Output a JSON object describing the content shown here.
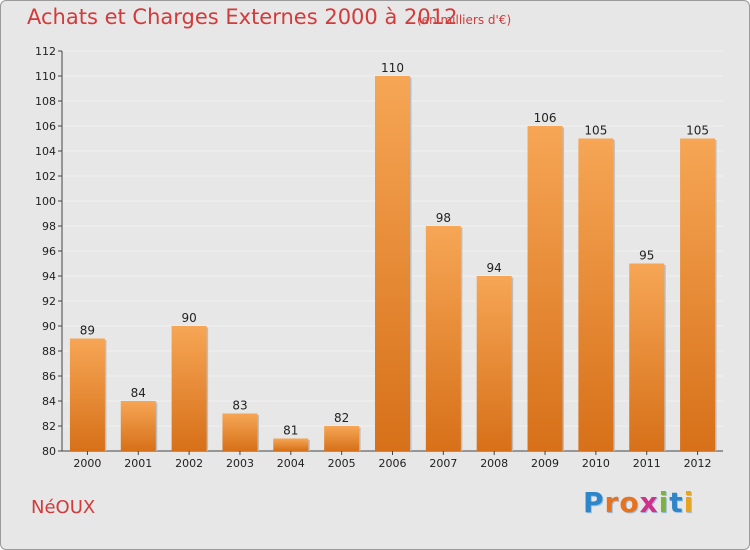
{
  "title": "Achats et Charges Externes 2000 à 2012",
  "subtitle": "(en milliers d'€)",
  "commune": "NéOUX",
  "logo": {
    "text": "Proxiti",
    "letters": [
      "P",
      "r",
      "o",
      "x",
      "i",
      "t",
      "i"
    ],
    "colors": [
      "#2e86c9",
      "#e8731c",
      "#e8731c",
      "#d22f8b",
      "#7fb23a",
      "#2e86c9",
      "#e8a41c"
    ]
  },
  "colors": {
    "bar_top": "#f6a655",
    "bar_bottom": "#d77019",
    "axis": "#444444",
    "grid": "#f2f2f2"
  },
  "chart_data": {
    "type": "bar",
    "categories": [
      "2000",
      "2001",
      "2002",
      "2003",
      "2004",
      "2005",
      "2006",
      "2007",
      "2008",
      "2009",
      "2010",
      "2011",
      "2012"
    ],
    "values": [
      89,
      84,
      90,
      83,
      81,
      82,
      110,
      98,
      94,
      106,
      105,
      95,
      105
    ],
    "ylim": [
      80,
      112
    ],
    "yticks": [
      80,
      82,
      84,
      86,
      88,
      90,
      92,
      94,
      96,
      98,
      100,
      102,
      104,
      106,
      108,
      110,
      112
    ],
    "grid": "horizontal",
    "xlabel": "",
    "ylabel": ""
  }
}
